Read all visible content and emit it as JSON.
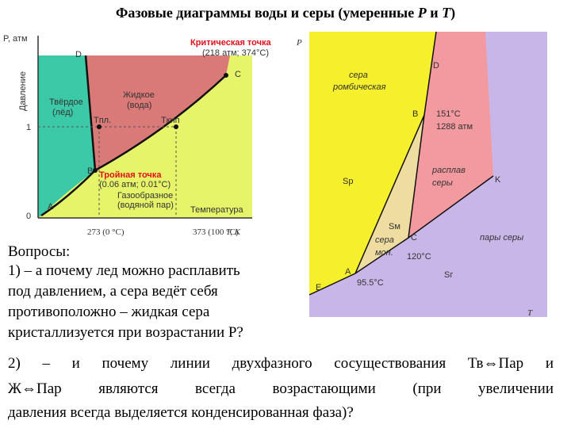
{
  "header": {
    "title_parts": [
      "Фазовые диаграммы воды и серы (умеренные ",
      "P",
      " и ",
      "T",
      ")"
    ]
  },
  "water": {
    "y_axis": "P, атм",
    "y_label": "Давление",
    "d": "D",
    "critical": "Критическая точка",
    "critical_values": "(218 атм; 374°C)",
    "c": "C",
    "solid": [
      "Твёрдое",
      "(лёд)"
    ],
    "liquid": [
      "Жидкое",
      "(вода)"
    ],
    "t_melt": "Tпл.",
    "t_boil": "Tкип",
    "tick_1": "1",
    "b": "B",
    "triple": "Тройная точка",
    "triple_values": "(0.06 атм; 0.01°C)",
    "gas": [
      "Газообразное",
      "(водяной пар)"
    ],
    "x_label": "Температура",
    "a": "A",
    "tick_0": "0",
    "x_tick_273": "273 (0 °C)",
    "x_tick_373": "373 (100 °C)",
    "x_axis": "T, K"
  },
  "sulfur": {
    "y_axis": "P",
    "d": "D",
    "rhombic": [
      "сера",
      "ромбическая"
    ],
    "b": "B",
    "b_values": [
      "151°C",
      "1288 атм"
    ],
    "s_r": "Sр",
    "melt": [
      "расплав",
      "серы"
    ],
    "k": "K",
    "s_m": "Sм",
    "mono": [
      "сера",
      "мон."
    ],
    "c": "C",
    "c_value": "120°C",
    "vapor": "пары серы",
    "a": "A",
    "a_value": "95.5°C",
    "s_g": "Sг",
    "e": "E",
    "x_axis": "T"
  },
  "questions": {
    "heading": "Вопросы:",
    "q1": [
      "1) – а почему лед можно расплавить",
      "под давлением, а сера ведёт себя",
      "противоположно – жидкая сера",
      "кристаллизуется при возрастании P?"
    ],
    "q2": [
      "2) – и почему линии двухфазного сосуществования Тв⇔Пар и",
      "Ж⇔Пар являются всегда возрастающими (при увеличении",
      "давления всегда выделяется конденсированная фаза)?"
    ]
  }
}
